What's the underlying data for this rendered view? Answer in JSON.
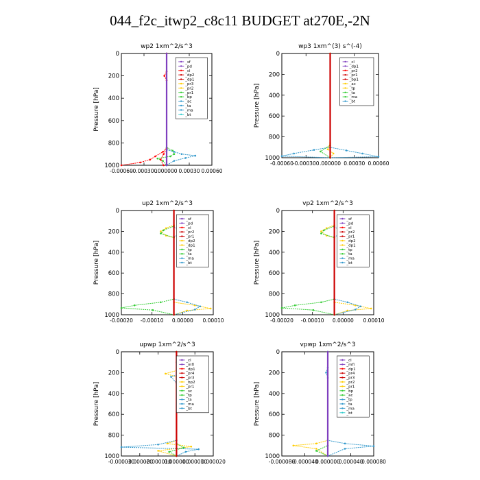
{
  "title": "044_f2c_itwp2_c8c11  BUDGET at270E,-2N",
  "chart_data": [
    {
      "type": "line",
      "title": "wp2   1xm^2/s^3",
      "ylabel": "Pressure [hPa]",
      "xlim": [
        -0.0006,
        0.0006
      ],
      "x_ticks": [
        "-0.00060",
        "-0.000300",
        ".000000",
        "0.00030",
        "0.00060"
      ],
      "y_ticks": [
        "0",
        "200",
        "400",
        "600",
        "800",
        "1000"
      ],
      "ylim": [
        0,
        1000
      ],
      "legend": [
        "_sf",
        "_pd",
        "_cl",
        "_dp2",
        "_dp1",
        "_pr3",
        "_pr2",
        "_pr1",
        "_bp",
        "_ac",
        "_ta",
        "_ma",
        "_bt"
      ],
      "series": [
        {
          "name": "_dp1",
          "color": "#ff0000",
          "points": [
            [
              0,
              0
            ],
            [
              0,
              850
            ],
            [
              -5e-05,
              880
            ],
            [
              -0.00015,
              920
            ],
            [
              -0.00022,
              950
            ],
            [
              -0.00035,
              975
            ],
            [
              -0.0006,
              1000
            ]
          ]
        },
        {
          "name": "_pr1",
          "color": "#33cc33",
          "points": [
            [
              0,
              0
            ],
            [
              0,
              840
            ],
            [
              8e-05,
              870
            ],
            [
              0.0001,
              900
            ],
            [
              5e-05,
              920
            ],
            [
              -0.00012,
              940
            ],
            [
              -5e-05,
              960
            ],
            [
              0,
              1000
            ]
          ]
        },
        {
          "name": "_bp",
          "color": "#3399cc",
          "points": [
            [
              0,
              0
            ],
            [
              0,
              860
            ],
            [
              0.0001,
              880
            ],
            [
              0.0002,
              900
            ],
            [
              0.00038,
              915
            ],
            [
              0.00025,
              935
            ],
            [
              0.0001,
              960
            ],
            [
              0,
              1000
            ]
          ]
        },
        {
          "name": "_cl",
          "color": "#ff0000",
          "points": [
            [
              0,
              0
            ],
            [
              0,
              160
            ],
            [
              -3e-05,
              200
            ],
            [
              0,
              240
            ],
            [
              0,
              850
            ],
            [
              -4e-05,
              900
            ],
            [
              -8e-05,
              950
            ],
            [
              -4e-05,
              1000
            ]
          ]
        },
        {
          "name": "_bt",
          "color": "#7f3fbf",
          "points": [
            [
              0,
              0
            ],
            [
              0,
              1000
            ]
          ]
        }
      ]
    },
    {
      "type": "line",
      "title": "wp3   1xm^(3) s^(-4)",
      "ylabel": "Pressure [hPa]",
      "xlim": [
        -0.0006,
        0.0006
      ],
      "x_ticks": [
        "-0.00060",
        "-0.000300",
        ".000000",
        "0.00030",
        "0.00060"
      ],
      "y_ticks": [
        "0",
        "200",
        "400",
        "600",
        "800",
        "1000"
      ],
      "ylim": [
        0,
        1000
      ],
      "legend": [
        "_cl",
        "_dp1",
        "_pr2",
        "_pr1",
        "_bp1",
        "_ac",
        "_tp",
        "_ta",
        "_ma",
        "_bt"
      ],
      "series": [
        {
          "name": "_tp",
          "color": "#3399cc",
          "points": [
            [
              0,
              0
            ],
            [
              0,
              900
            ],
            [
              -0.0002,
              925
            ],
            [
              -0.00045,
              960
            ],
            [
              -0.0006,
              985
            ],
            [
              0,
              1000
            ]
          ]
        },
        {
          "name": "_ta",
          "color": "#3399cc",
          "points": [
            [
              0,
              0
            ],
            [
              0,
              900
            ],
            [
              0.0002,
              930
            ],
            [
              0.0004,
              960
            ],
            [
              0.0006,
              990
            ],
            [
              0,
              1000
            ]
          ]
        },
        {
          "name": "_pr1",
          "color": "#33cc33",
          "points": [
            [
              0,
              0
            ],
            [
              0,
              880
            ],
            [
              -0.00012,
              940
            ],
            [
              0,
              1000
            ]
          ]
        },
        {
          "name": "_pr2",
          "color": "#ffcc00",
          "points": [
            [
              0,
              0
            ],
            [
              0,
              860
            ],
            [
              -3e-05,
              920
            ],
            [
              4e-05,
              960
            ],
            [
              0,
              1000
            ]
          ]
        },
        {
          "name": "_bt",
          "color": "#cc0000",
          "points": [
            [
              0,
              0
            ],
            [
              0,
              1000
            ]
          ]
        }
      ]
    },
    {
      "type": "line",
      "title": "up2   1xm^2/s^3",
      "ylabel": "Pressure [hPa]",
      "xlim": [
        -0.0002,
        0.00015
      ],
      "x_ticks": [
        "-0.00020",
        "-0.00010",
        "0.00000",
        "0.00010"
      ],
      "y_ticks": [
        "0",
        "200",
        "400",
        "600",
        "800",
        "1000"
      ],
      "ylim": [
        0,
        1000
      ],
      "legend": [
        "_sf",
        "_pd",
        "_cl",
        "_pr2",
        "_pr1",
        "_dp2",
        "_dp1",
        "_tp",
        "_ta",
        "_ma",
        "_bt"
      ],
      "series": [
        {
          "name": "_pr1",
          "color": "#ffcc00",
          "points": [
            [
              0,
              0
            ],
            [
              0,
              140
            ],
            [
              -3e-05,
              170
            ],
            [
              -5e-05,
              200
            ],
            [
              -3e-05,
              240
            ],
            [
              0,
              260
            ],
            [
              0,
              880
            ],
            [
              8e-05,
              910
            ],
            [
              0.00014,
              940
            ],
            [
              5e-05,
              960
            ],
            [
              0,
              1000
            ]
          ]
        },
        {
          "name": "_pr2",
          "color": "#33cc33",
          "points": [
            [
              0,
              0
            ],
            [
              0,
              150
            ],
            [
              -4e-05,
              190
            ],
            [
              -5e-05,
              220
            ],
            [
              0,
              260
            ],
            [
              0,
              850
            ],
            [
              -5e-05,
              880
            ],
            [
              -0.00015,
              910
            ],
            [
              -0.0002,
              935
            ],
            [
              -8e-05,
              955
            ],
            [
              0,
              1000
            ]
          ]
        },
        {
          "name": "_tp",
          "color": "#3399cc",
          "points": [
            [
              0,
              0
            ],
            [
              0,
              160
            ],
            [
              3e-05,
              190
            ],
            [
              4e-05,
              220
            ],
            [
              0,
              250
            ],
            [
              0,
              850
            ],
            [
              5e-05,
              880
            ],
            [
              0.0001,
              920
            ],
            [
              8e-05,
              950
            ],
            [
              0,
              1000
            ]
          ]
        },
        {
          "name": "_bt",
          "color": "#cc0000",
          "points": [
            [
              0,
              0
            ],
            [
              0,
              1000
            ]
          ]
        }
      ]
    },
    {
      "type": "line",
      "title": "vp2   1xm^2/s^3",
      "ylabel": "Pressure [hPa]",
      "xlim": [
        -0.0002,
        0.00015
      ],
      "x_ticks": [
        "-0.00020",
        "-0.00010",
        "0.00000",
        "0.00010"
      ],
      "y_ticks": [
        "0",
        "200",
        "400",
        "600",
        "800",
        "1000"
      ],
      "ylim": [
        0,
        1000
      ],
      "legend": [
        "_sf",
        "_pd",
        "_cl",
        "_pr2",
        "_pr1",
        "_dp2",
        "_dp1",
        "_tp",
        "_ta",
        "_ma",
        "_bt"
      ],
      "series": [
        {
          "name": "_pr1",
          "color": "#ffcc00",
          "points": [
            [
              0,
              0
            ],
            [
              0,
              140
            ],
            [
              -3e-05,
              170
            ],
            [
              -5e-05,
              200
            ],
            [
              -3e-05,
              240
            ],
            [
              0,
              260
            ],
            [
              0,
              880
            ],
            [
              8e-05,
              910
            ],
            [
              0.00014,
              940
            ],
            [
              5e-05,
              960
            ],
            [
              0,
              1000
            ]
          ]
        },
        {
          "name": "_pr2",
          "color": "#33cc33",
          "points": [
            [
              0,
              0
            ],
            [
              0,
              150
            ],
            [
              -4e-05,
              190
            ],
            [
              -5e-05,
              220
            ],
            [
              0,
              260
            ],
            [
              0,
              850
            ],
            [
              -5e-05,
              880
            ],
            [
              -0.00015,
              910
            ],
            [
              -0.0002,
              935
            ],
            [
              -8e-05,
              955
            ],
            [
              0,
              1000
            ]
          ]
        },
        {
          "name": "_tp",
          "color": "#3399cc",
          "points": [
            [
              0,
              0
            ],
            [
              0,
              160
            ],
            [
              3e-05,
              190
            ],
            [
              4e-05,
              220
            ],
            [
              0,
              250
            ],
            [
              0,
              850
            ],
            [
              5e-05,
              880
            ],
            [
              0.0001,
              920
            ],
            [
              8e-05,
              950
            ],
            [
              0,
              1000
            ]
          ]
        },
        {
          "name": "_bt",
          "color": "#cc0000",
          "points": [
            [
              0,
              0
            ],
            [
              0,
              1000
            ]
          ]
        }
      ]
    },
    {
      "type": "line",
      "title": "upwp   1xm^2/s^3",
      "ylabel": "Pressure [hPa]",
      "xlim": [
        -3e-05,
        2e-05
      ],
      "x_ticks": [
        "-0.000030",
        "-0.000020",
        "-0.000010",
        "0.000000",
        "0.000010",
        "0.000020"
      ],
      "y_ticks": [
        "0",
        "200",
        "400",
        "600",
        "800",
        "1000"
      ],
      "ylim": [
        0,
        1000
      ],
      "legend": [
        "_cl",
        "_mfl",
        "_dp1",
        "_pr4",
        "_pr3",
        "_bp2",
        "_pr1",
        "_sc",
        "_tp",
        "_ta",
        "_ma",
        "_bt"
      ],
      "series": [
        {
          "name": "_pr1",
          "color": "#ffcc00",
          "points": [
            [
              0,
              0
            ],
            [
              0,
              180
            ],
            [
              -6e-06,
              210
            ],
            [
              0,
              240
            ],
            [
              0,
              850
            ],
            [
              -5e-06,
              880
            ],
            [
              8e-06,
              910
            ],
            [
              -1e-05,
              950
            ],
            [
              0,
              1000
            ]
          ]
        },
        {
          "name": "_tp",
          "color": "#3399cc",
          "points": [
            [
              0,
              0
            ],
            [
              0,
              100
            ],
            [
              3e-06,
              150
            ],
            [
              4e-06,
              200
            ],
            [
              -3e-06,
              240
            ],
            [
              0,
              300
            ],
            [
              0,
              850
            ],
            [
              -1e-05,
              890
            ],
            [
              -3e-05,
              915
            ],
            [
              1.2e-05,
              935
            ],
            [
              5e-06,
              960
            ],
            [
              0,
              1000
            ]
          ]
        },
        {
          "name": "_pr3",
          "color": "#33cc33",
          "points": [
            [
              0,
              0
            ],
            [
              0,
              880
            ],
            [
              4e-06,
              920
            ],
            [
              -4e-06,
              960
            ],
            [
              0,
              1000
            ]
          ]
        },
        {
          "name": "_bt",
          "color": "#cc0000",
          "points": [
            [
              0,
              0
            ],
            [
              0,
              1000
            ]
          ]
        }
      ]
    },
    {
      "type": "line",
      "title": "vpwp   1xm^2/s^3",
      "ylabel": "Pressure [hPa]",
      "xlim": [
        -8e-05,
        8e-05
      ],
      "x_ticks": [
        "-0.000080",
        "-0.000040",
        "0.000000",
        "0.000040",
        "0.000080"
      ],
      "y_ticks": [
        "0",
        "200",
        "400",
        "600",
        "800",
        "1000"
      ],
      "ylim": [
        0,
        1000
      ],
      "legend": [
        "_cl",
        "_mfl",
        "_dp1",
        "_pr4",
        "_pr3",
        "_pr2",
        "_pr1",
        "_bp",
        "_ac",
        "_tp",
        "_ta",
        "_ma",
        "_bt"
      ],
      "series": [
        {
          "name": "_pr1",
          "color": "#ffcc00",
          "points": [
            [
              0,
              0
            ],
            [
              0,
              850
            ],
            [
              -2e-05,
              880
            ],
            [
              -6e-05,
              900
            ],
            [
              -2e-05,
              930
            ],
            [
              0,
              1000
            ]
          ]
        },
        {
          "name": "_tp",
          "color": "#3399cc",
          "points": [
            [
              0,
              0
            ],
            [
              0,
              150
            ],
            [
              -3e-06,
              200
            ],
            [
              0,
              250
            ],
            [
              0,
              850
            ],
            [
              3e-05,
              880
            ],
            [
              8e-05,
              905
            ],
            [
              3e-05,
              930
            ],
            [
              0,
              1000
            ]
          ]
        },
        {
          "name": "_pr3",
          "color": "#33cc33",
          "points": [
            [
              0,
              0
            ],
            [
              0,
              900
            ],
            [
              -2e-05,
              950
            ],
            [
              0,
              1000
            ]
          ]
        },
        {
          "name": "_bt",
          "color": "#7f3fbf",
          "points": [
            [
              0,
              0
            ],
            [
              0,
              1000
            ]
          ]
        }
      ]
    }
  ]
}
